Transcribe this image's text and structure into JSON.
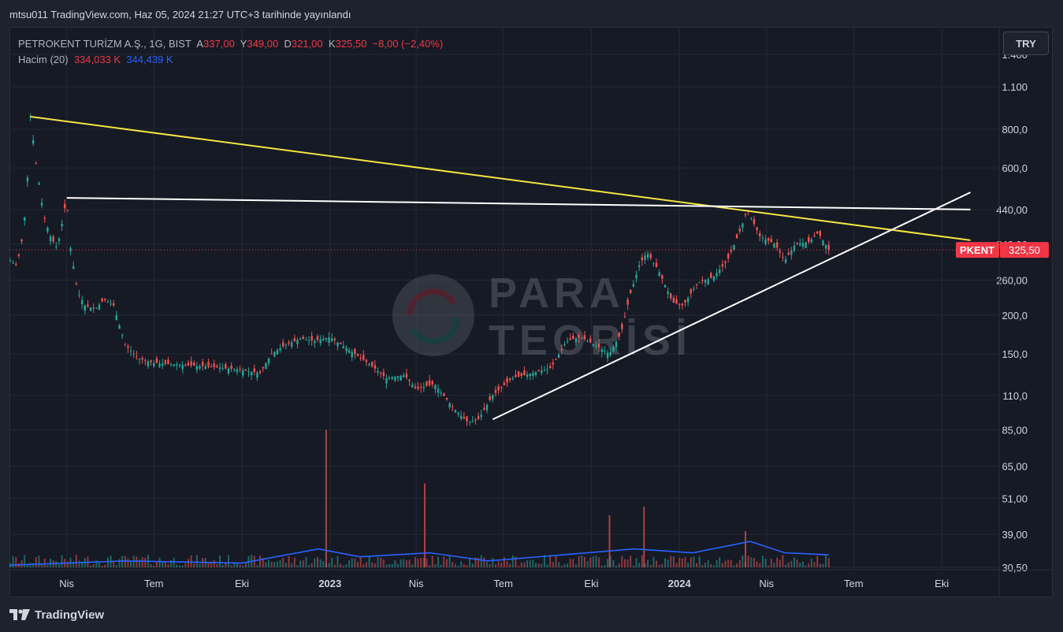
{
  "header": {
    "published": "mtsu011 TradingView.com, Haz 05, 2024 21:27 UTC+3 tarihinde yayınlandı"
  },
  "legend": {
    "symbol": "PETROKENT TURİZM A.Ş., 1G, BIST",
    "open_label": "A",
    "open": "337,00",
    "high_label": "Y",
    "high": "349,00",
    "low_label": "D",
    "low": "321,00",
    "close_label": "K",
    "close": "325,50",
    "change": "−8,00 (−2,40%)",
    "volume_label": "Hacim (20)",
    "volume_value": "334,033 K",
    "volume_ma": "344,439 K"
  },
  "currency_button": "TRY",
  "watermark": {
    "line1": "PARA",
    "line2": "TEORİSİ"
  },
  "footer": {
    "brand": "TradingView"
  },
  "colors": {
    "up": "#26a69a",
    "down": "#ef5350",
    "resistance_line": "#f5e642",
    "trend_line": "#ffffff",
    "volume_ma": "#2962ff",
    "price_tag": "#f23645"
  },
  "chart_data": {
    "type": "candlestick",
    "symbol": "PKENT",
    "scale": "log",
    "ylim": [
      30.5,
      1450
    ],
    "y_ticks": [
      1400,
      1100,
      800,
      600,
      440,
      340,
      260,
      200,
      150,
      110,
      85,
      65,
      51,
      39,
      30.5
    ],
    "y_tick_labels": [
      "1.400",
      "1.100",
      "800,0",
      "600,0",
      "440,00",
      "340,00",
      "260,00",
      "200,0",
      "150,0",
      "110,0",
      "85,00",
      "65,00",
      "51,00",
      "39,00",
      "30,50"
    ],
    "x_ticks": [
      "Nis",
      "Tem",
      "Eki",
      "2023",
      "Nis",
      "Tem",
      "Eki",
      "2024",
      "Nis",
      "Tem",
      "Eki"
    ],
    "x_range": [
      "2022-02-01",
      "2024-11-30"
    ],
    "last_price": {
      "value": 325.5,
      "label": "325,50",
      "tag": "PKENT"
    },
    "price_path": [
      [
        "2022-02-01",
        300
      ],
      [
        "2022-02-08",
        290
      ],
      [
        "2022-02-14",
        360
      ],
      [
        "2022-02-18",
        480
      ],
      [
        "2022-02-22",
        880
      ],
      [
        "2022-02-28",
        620
      ],
      [
        "2022-03-08",
        420
      ],
      [
        "2022-03-15",
        360
      ],
      [
        "2022-03-22",
        330
      ],
      [
        "2022-03-28",
        410
      ],
      [
        "2022-04-01",
        480
      ],
      [
        "2022-04-05",
        330
      ],
      [
        "2022-04-12",
        240
      ],
      [
        "2022-04-20",
        215
      ],
      [
        "2022-05-01",
        210
      ],
      [
        "2022-05-10",
        225
      ],
      [
        "2022-05-20",
        215
      ],
      [
        "2022-06-01",
        160
      ],
      [
        "2022-06-15",
        145
      ],
      [
        "2022-07-01",
        140
      ],
      [
        "2022-08-01",
        138
      ],
      [
        "2022-09-01",
        136
      ],
      [
        "2022-10-01",
        133
      ],
      [
        "2022-10-20",
        130
      ],
      [
        "2022-11-01",
        150
      ],
      [
        "2022-11-15",
        160
      ],
      [
        "2022-12-01",
        168
      ],
      [
        "2022-12-15",
        165
      ],
      [
        "2023-01-01",
        170
      ],
      [
        "2023-01-20",
        155
      ],
      [
        "2023-02-10",
        140
      ],
      [
        "2023-03-01",
        125
      ],
      [
        "2023-03-20",
        128
      ],
      [
        "2023-04-01",
        115
      ],
      [
        "2023-04-20",
        120
      ],
      [
        "2023-05-10",
        100
      ],
      [
        "2023-05-25",
        90
      ],
      [
        "2023-06-05",
        92
      ],
      [
        "2023-06-20",
        110
      ],
      [
        "2023-07-10",
        125
      ],
      [
        "2023-08-01",
        130
      ],
      [
        "2023-08-20",
        135
      ],
      [
        "2023-09-05",
        165
      ],
      [
        "2023-09-20",
        170
      ],
      [
        "2023-10-05",
        160
      ],
      [
        "2023-10-20",
        150
      ],
      [
        "2023-11-01",
        175
      ],
      [
        "2023-11-10",
        230
      ],
      [
        "2023-11-20",
        290
      ],
      [
        "2023-11-28",
        320
      ],
      [
        "2023-12-10",
        280
      ],
      [
        "2023-12-25",
        220
      ],
      [
        "2024-01-05",
        215
      ],
      [
        "2024-01-20",
        255
      ],
      [
        "2024-02-05",
        265
      ],
      [
        "2024-02-20",
        300
      ],
      [
        "2024-03-05",
        380
      ],
      [
        "2024-03-12",
        440
      ],
      [
        "2024-03-25",
        360
      ],
      [
        "2024-04-10",
        340
      ],
      [
        "2024-04-20",
        300
      ],
      [
        "2024-05-01",
        340
      ],
      [
        "2024-05-15",
        345
      ],
      [
        "2024-05-25",
        370
      ],
      [
        "2024-06-05",
        325.5
      ]
    ],
    "volume_ma_path": [
      [
        "2022-02-01",
        31
      ],
      [
        "2022-06-01",
        32
      ],
      [
        "2022-10-01",
        31.5
      ],
      [
        "2022-12-20",
        35
      ],
      [
        "2023-02-01",
        33
      ],
      [
        "2023-04-15",
        34
      ],
      [
        "2023-06-15",
        32
      ],
      [
        "2023-09-01",
        33.5
      ],
      [
        "2023-11-15",
        35
      ],
      [
        "2024-01-15",
        34
      ],
      [
        "2024-03-15",
        37
      ],
      [
        "2024-04-20",
        34
      ],
      [
        "2024-06-05",
        33.5
      ]
    ],
    "volume_spikes": [
      [
        "2022-12-28",
        85
      ],
      [
        "2023-04-10",
        57
      ],
      [
        "2023-11-25",
        48
      ],
      [
        "2023-10-20",
        45
      ],
      [
        "2024-03-10",
        40
      ]
    ],
    "drawings": [
      {
        "name": "descending-resistance",
        "from": [
          "2022-02-22",
          880
        ],
        "to": [
          "2024-10-31",
          350
        ]
      },
      {
        "name": "horizontal-resistance",
        "from": [
          "2022-04-01",
          480
        ],
        "to": [
          "2024-10-31",
          440
        ]
      },
      {
        "name": "ascending-support",
        "from": [
          "2023-06-20",
          92
        ],
        "to": [
          "2024-10-31",
          500
        ]
      }
    ]
  }
}
